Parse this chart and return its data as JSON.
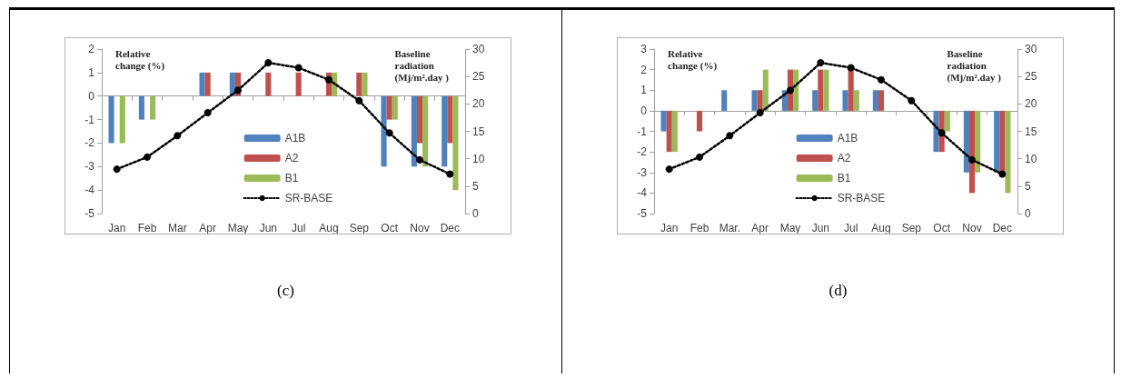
{
  "chart_data": [
    {
      "type": "bar",
      "categories": [
        "Jan",
        "Feb",
        "Mar",
        "Apr",
        "May",
        "Jun",
        "Jul",
        "Aug",
        "Sep",
        "Oct",
        "Nov",
        "Dec"
      ],
      "ylabel": "Relative change (%)",
      "y2label": "Baseline radiation (Mj/m².day )",
      "ylim": [
        -5,
        2
      ],
      "yticks": [
        -5,
        -4,
        -3,
        -2,
        -1,
        0,
        1,
        2
      ],
      "y2lim": [
        0,
        30
      ],
      "y2ticks": [
        0,
        5,
        10,
        15,
        20,
        25,
        30
      ],
      "legend": "bottom",
      "annotations": [
        "(c)"
      ],
      "series": [
        {
          "name": "A1B",
          "color": "#4f81bd",
          "values": [
            -2,
            -1,
            0,
            1,
            1,
            0,
            0,
            0,
            0,
            -3,
            -3,
            -3
          ]
        },
        {
          "name": "A2",
          "color": "#c0504d",
          "values": [
            0,
            0,
            0,
            1,
            1,
            1,
            1,
            1,
            1,
            -1,
            -2,
            -2
          ]
        },
        {
          "name": "B1",
          "color": "#9bbb59",
          "values": [
            -2,
            -1,
            0,
            0,
            0,
            0,
            0,
            1,
            1,
            -1,
            -3,
            -4
          ]
        },
        {
          "name": "SR-BASE",
          "type": "line",
          "axis": "y2",
          "color": "#000000",
          "marker": "circle",
          "line_style": "dotted",
          "values": [
            8.1,
            10.3,
            14.2,
            18.4,
            22.5,
            27.5,
            26.6,
            24.4,
            20.6,
            14.7,
            9.8,
            7.2
          ]
        }
      ]
    },
    {
      "type": "bar",
      "categories": [
        "Jan",
        "Feb",
        "Mar.",
        "Apr",
        "May",
        "Jun",
        "Jul",
        "Aug",
        "Sep",
        "Oct",
        "Nov",
        "Dec"
      ],
      "ylabel": "Relative change (%)",
      "y2label": "Baseline radiation (Mj/m².day )",
      "ylim": [
        -5,
        3
      ],
      "yticks": [
        -5,
        -4,
        -3,
        -2,
        -1,
        0,
        1,
        2,
        3
      ],
      "y2lim": [
        0,
        30
      ],
      "y2ticks": [
        0,
        5,
        10,
        15,
        20,
        25,
        30
      ],
      "legend": "bottom",
      "annotations": [
        "(d)"
      ],
      "series": [
        {
          "name": "A1B",
          "color": "#4f81bd",
          "values": [
            -1,
            0,
            1,
            1,
            1,
            1,
            1,
            1,
            0,
            -2,
            -3,
            -3
          ]
        },
        {
          "name": "A2",
          "color": "#c0504d",
          "values": [
            -2,
            -1,
            0,
            1,
            2,
            2,
            2,
            1,
            0,
            -2,
            -4,
            -3
          ]
        },
        {
          "name": "B1",
          "color": "#9bbb59",
          "values": [
            -2,
            0,
            0,
            2,
            2,
            2,
            1,
            0,
            0,
            -1,
            -3,
            -4
          ]
        },
        {
          "name": "SR-BASE",
          "type": "line",
          "axis": "y2",
          "color": "#000000",
          "marker": "circle",
          "line_style": "dotted",
          "values": [
            8.1,
            10.3,
            14.2,
            18.4,
            22.5,
            27.5,
            26.6,
            24.4,
            20.6,
            14.7,
            9.8,
            7.2
          ]
        }
      ]
    }
  ]
}
